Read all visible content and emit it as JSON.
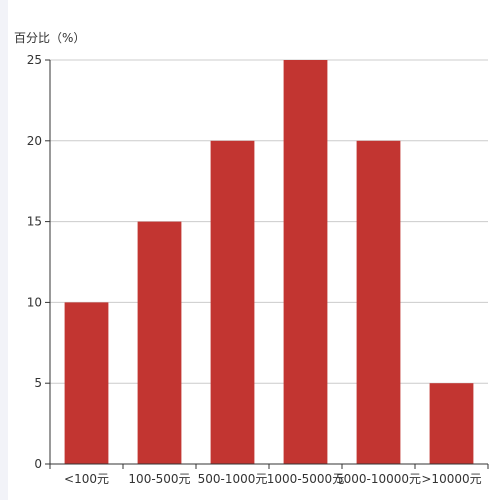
{
  "chart_data": {
    "type": "bar",
    "ylabel": "百分比（%）",
    "categories": [
      "<100元",
      "100-500元",
      "500-1000元",
      "1000-5000元",
      "5000-10000元",
      ">10000元"
    ],
    "values": [
      10,
      15,
      20,
      25,
      20,
      5
    ],
    "ylim": [
      0,
      25
    ],
    "yticks": [
      0,
      5,
      10,
      15,
      20,
      25
    ],
    "grid": true,
    "bar_color": "#c23531",
    "axis_color": "#333333",
    "grid_color": "#cccccc"
  }
}
